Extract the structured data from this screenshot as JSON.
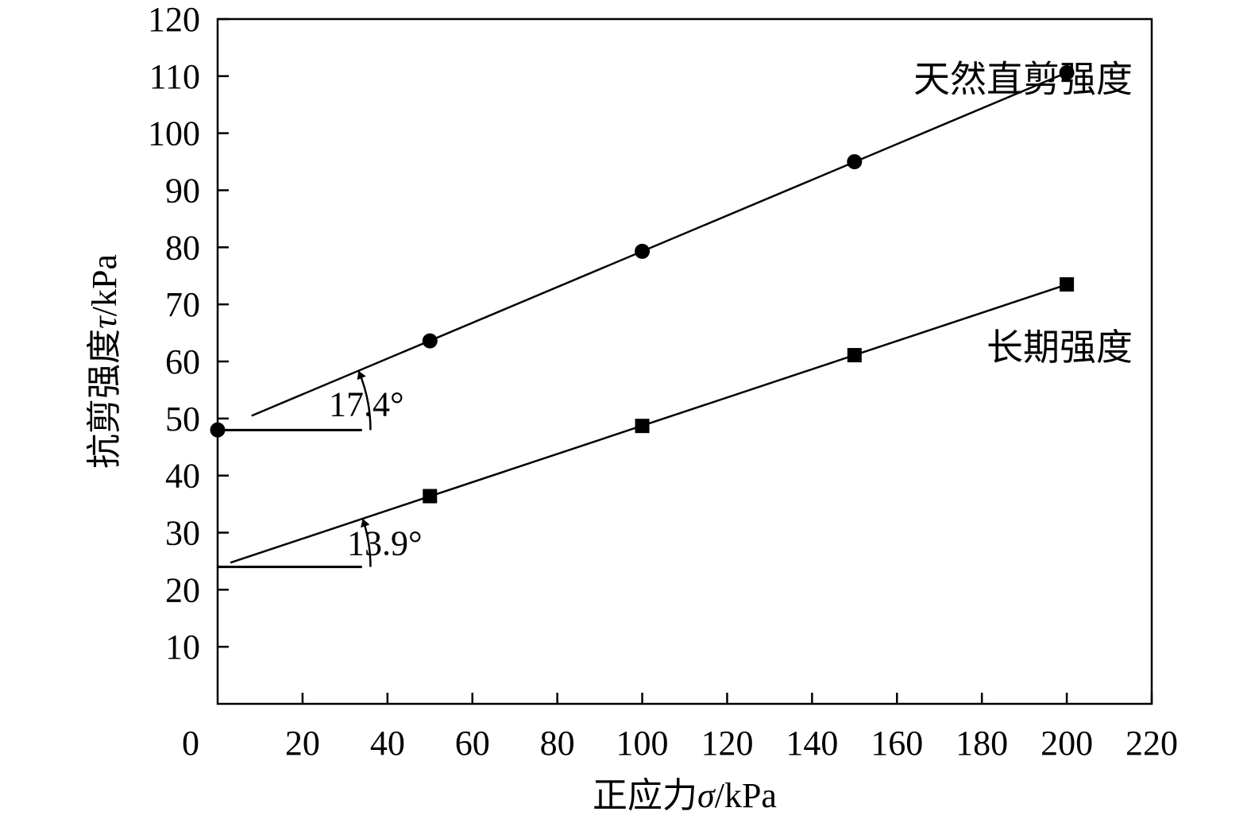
{
  "chart_data": {
    "type": "line",
    "xlabel": {
      "prefix": "正应力",
      "symbol": "σ",
      "unit": "/kPa"
    },
    "ylabel": {
      "prefix": "抗剪强度",
      "symbol": "τ",
      "unit": "/kPa"
    },
    "xlim": [
      0,
      220
    ],
    "ylim": [
      0,
      120
    ],
    "x_ticks": [
      0,
      20,
      40,
      60,
      80,
      100,
      120,
      140,
      160,
      180,
      200,
      220
    ],
    "y_ticks": [
      10,
      20,
      30,
      40,
      50,
      60,
      70,
      80,
      90,
      100,
      110,
      120
    ],
    "grid": false,
    "series": [
      {
        "name": "天然直剪强度",
        "marker": "circle",
        "x": [
          0,
          50,
          100,
          150,
          200
        ],
        "y": [
          48.0,
          63.6,
          79.3,
          95.0,
          110.6
        ]
      },
      {
        "name": "长期强度",
        "marker": "square",
        "x": [
          50,
          100,
          150,
          200
        ],
        "y": [
          36.4,
          48.7,
          61.1,
          73.5
        ]
      }
    ],
    "annotations": [
      {
        "text": "17.4°",
        "series": 0
      },
      {
        "text": "13.9°",
        "series": 1
      }
    ],
    "colors": {
      "line": "#000000",
      "marker": "#000000"
    }
  }
}
